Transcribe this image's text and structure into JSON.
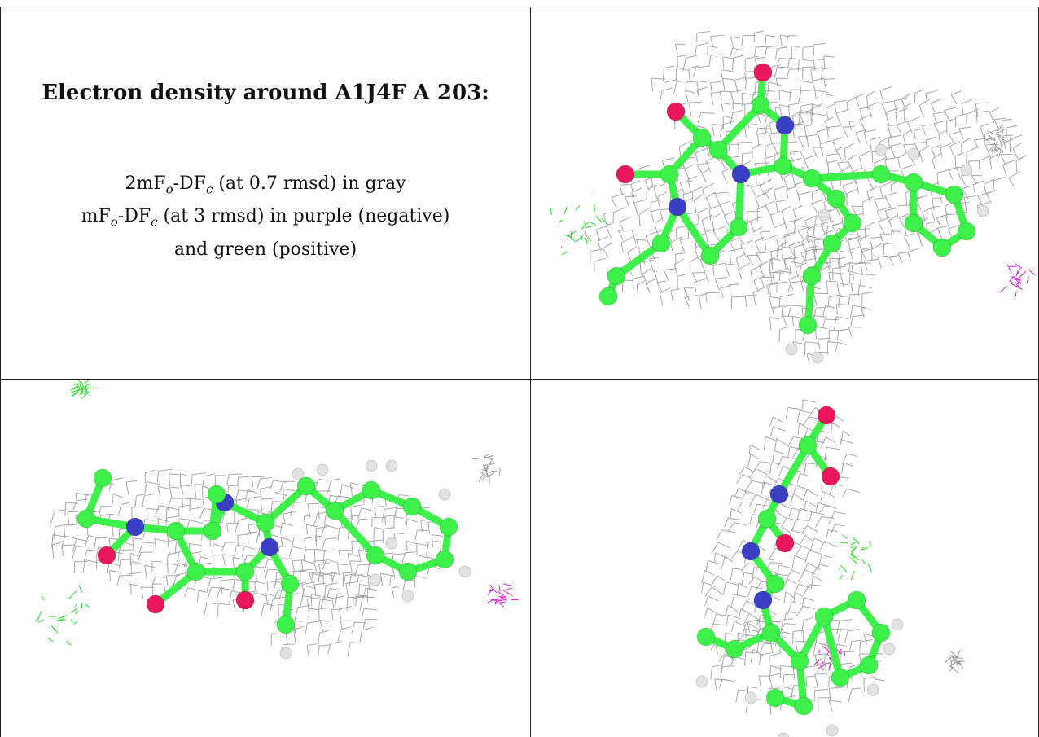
{
  "caption": {
    "title": "Electron density around A1J4F A 203:",
    "line1_a": "2mF",
    "line1_sub1": "o",
    "line1_b": "-DF",
    "line1_sub2": "c",
    "line1_c": " (at 0.7 rmsd) in gray",
    "line2_a": "mF",
    "line2_sub1": "o",
    "line2_b": "-DF",
    "line2_sub2": "c",
    "line2_c": " (at 3 rmsd) in purple (negative)",
    "line3": "and green (positive)"
  },
  "colors": {
    "mesh_gray": "#9a9a9a",
    "carbon_green": "#3df04a",
    "nitrogen_blue": "#3b3fc4",
    "oxygen_red": "#e8175d",
    "hydrogen_white": "#e2e2e2",
    "positive_green": "#22dd22",
    "negative_purple": "#dd22dd"
  },
  "panels": [
    {
      "view": "top-right"
    },
    {
      "view": "bottom-left"
    },
    {
      "view": "bottom-right"
    }
  ]
}
